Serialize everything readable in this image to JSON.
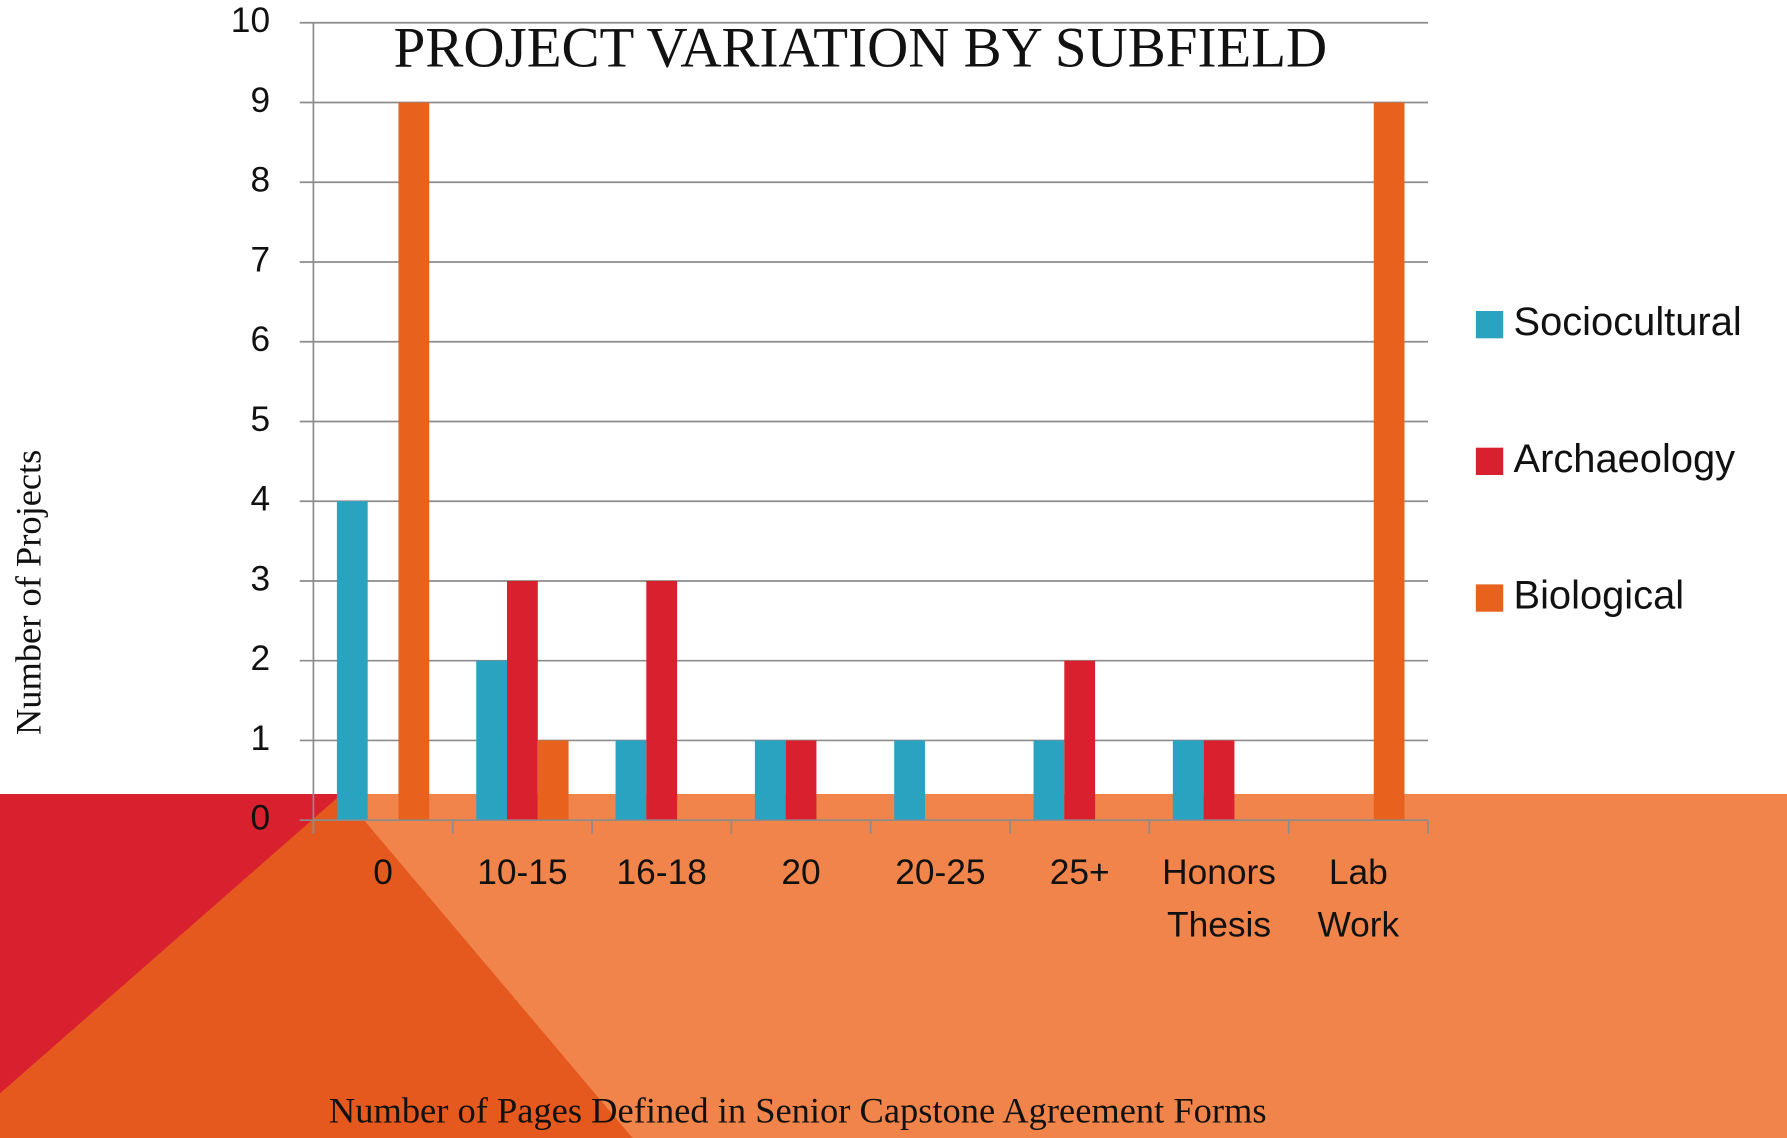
{
  "chart_data": {
    "type": "bar",
    "title": "PROJECT VARIATION BY SUBFIELD",
    "x_label": "Number of Pages Defined in Senior Capstone Agreement Forms",
    "y_label": "Number of Projects",
    "categories": [
      "0",
      "10-15",
      "16-18",
      "20",
      "20-25",
      "25+",
      "Honors Thesis",
      "Lab Work"
    ],
    "series": [
      {
        "name": "Sociocultural",
        "color": "#2aa3c0",
        "values": [
          4,
          2,
          1,
          1,
          1,
          1,
          1,
          0
        ]
      },
      {
        "name": "Archaeology",
        "color": "#d9202e",
        "values": [
          0,
          3,
          3,
          1,
          0,
          2,
          1,
          0
        ]
      },
      {
        "name": "Biological",
        "color": "#e8621e",
        "values": [
          9,
          1,
          0,
          0,
          0,
          0,
          0,
          9
        ]
      }
    ],
    "ylim": [
      0,
      10
    ],
    "yticks": [
      0,
      1,
      2,
      3,
      4,
      5,
      6,
      7,
      8,
      9,
      10
    ],
    "grid": true,
    "legend": "right"
  }
}
